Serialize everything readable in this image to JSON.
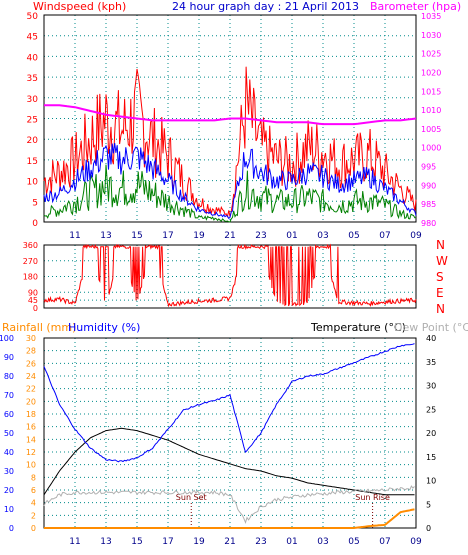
{
  "header": {
    "windspeed_label": "Windspeed (kph)",
    "title": "24 hour graph day : 21 April 2013",
    "barometer_label": "Barometer (hpa)",
    "rainfall_label": "Rainfall (mm)",
    "humidity_label": "Humidity (%)",
    "temperature_label": "Temperature (°C)",
    "dewpoint_label": "Dew Point (°C)"
  },
  "colors": {
    "wind_gust": "#ff0000",
    "wind_avg": "#0000ff",
    "wind_low": "#008000",
    "barometer": "#ff00ff",
    "temperature": "#000000",
    "humidity": "#0000ff",
    "dewpoint": "#b0b0b0",
    "rainfall": "#ff8c00",
    "axis_blue": "#00008b",
    "grid": "#008b8b"
  },
  "x_labels": [
    "11",
    "13",
    "15",
    "17",
    "19",
    "21",
    "23",
    "01",
    "03",
    "05",
    "07",
    "09"
  ],
  "annotations": {
    "sunset": "Sun Set",
    "sunrise": "Sun Rise"
  },
  "chart_data": [
    {
      "type": "line",
      "title": "24 hour graph day : 21 April 2013",
      "ylabel": "Windspeed (kph)",
      "y2label": "Barometer (hpa)",
      "ylim": [
        0,
        50
      ],
      "y2lim": [
        980,
        1035
      ],
      "y_ticks": [
        0,
        5,
        10,
        15,
        20,
        25,
        30,
        35,
        40,
        45,
        50
      ],
      "y2_ticks": [
        980,
        985,
        990,
        995,
        1000,
        1005,
        1010,
        1015,
        1020,
        1025,
        1030,
        1035
      ],
      "x": [
        "09:00",
        "10:00",
        "11:00",
        "12:00",
        "13:00",
        "14:00",
        "15:00",
        "16:00",
        "17:00",
        "18:00",
        "19:00",
        "20:00",
        "21:00",
        "22:00",
        "23:00",
        "00:00",
        "01:00",
        "02:00",
        "03:00",
        "04:00",
        "05:00",
        "06:00",
        "07:00",
        "08:00",
        "09:00"
      ],
      "series": [
        {
          "name": "Barometer (hpa)",
          "axis": "right",
          "values": [
            1011,
            1011,
            1010.5,
            1009.5,
            1008.5,
            1008,
            1007.5,
            1007,
            1007,
            1007,
            1007,
            1007,
            1007.5,
            1007.5,
            1007,
            1006.5,
            1006.5,
            1006.5,
            1006,
            1006,
            1006,
            1006.5,
            1007,
            1007,
            1007.5
          ]
        },
        {
          "name": "Gust",
          "axis": "left",
          "values": [
            10,
            12,
            15,
            20,
            25,
            22,
            26,
            20,
            16,
            10,
            5,
            3,
            2,
            28,
            18,
            15,
            14,
            18,
            17,
            14,
            15,
            16,
            12,
            8,
            4
          ]
        },
        {
          "name": "Average",
          "axis": "left",
          "values": [
            6,
            7,
            10,
            13,
            16,
            15,
            16,
            13,
            10,
            6,
            3,
            2,
            1,
            16,
            12,
            10,
            10,
            12,
            11,
            9,
            10,
            11,
            8,
            5,
            2
          ]
        },
        {
          "name": "Low",
          "axis": "left",
          "values": [
            2,
            3,
            5,
            7,
            9,
            8,
            9,
            7,
            5,
            3,
            1,
            1,
            0,
            8,
            6,
            5,
            5,
            6,
            5,
            4,
            5,
            5,
            4,
            2,
            1
          ]
        }
      ]
    },
    {
      "type": "scatter",
      "ylabel": "Wind direction",
      "y_ticks": [
        0,
        45,
        90,
        180,
        270,
        360
      ],
      "compass_labels": [
        "N",
        "W",
        "S",
        "E",
        "N"
      ],
      "ylim": [
        0,
        360
      ],
      "x": [
        "09:00",
        "10:00",
        "11:00",
        "12:00",
        "13:00",
        "14:00",
        "15:00",
        "16:00",
        "17:00",
        "18:00",
        "19:00",
        "20:00",
        "21:00",
        "22:00",
        "23:00",
        "00:00",
        "01:00",
        "02:00",
        "03:00",
        "04:00",
        "05:00",
        "06:00",
        "07:00",
        "08:00",
        "09:00"
      ],
      "values": [
        40,
        45,
        20,
        340,
        15,
        340,
        20,
        340,
        15,
        25,
        35,
        40,
        50,
        345,
        350,
        20,
        15,
        25,
        340,
        30,
        25,
        20,
        30,
        35,
        40
      ]
    },
    {
      "type": "line",
      "ylabel": "Humidity (%)",
      "y_ticks_humidity": [
        0,
        10,
        20,
        30,
        40,
        50,
        60,
        70,
        80,
        90,
        100
      ],
      "y_ticks_rainfall": [
        0,
        2,
        4,
        6,
        8,
        10,
        12,
        14,
        16,
        18,
        20,
        22,
        24,
        26,
        28,
        30
      ],
      "y2label": "Temperature (°C)",
      "y2_ticks": [
        0,
        5,
        10,
        15,
        20,
        25,
        30,
        35,
        40
      ],
      "x": [
        "09:00",
        "10:00",
        "11:00",
        "12:00",
        "13:00",
        "14:00",
        "15:00",
        "16:00",
        "17:00",
        "18:00",
        "19:00",
        "20:00",
        "21:00",
        "22:00",
        "23:00",
        "00:00",
        "01:00",
        "02:00",
        "03:00",
        "04:00",
        "05:00",
        "06:00",
        "07:00",
        "08:00",
        "09:00"
      ],
      "series": [
        {
          "name": "Temperature (°C)",
          "axis": "right",
          "values": [
            7,
            12,
            16,
            19,
            20.5,
            21,
            20.5,
            19.5,
            18.5,
            17,
            15.5,
            14.5,
            13.5,
            12.5,
            12,
            11,
            10.5,
            9.5,
            9,
            8.5,
            8,
            7.5,
            7,
            7,
            7
          ]
        },
        {
          "name": "Humidity (%)",
          "axis": "left_humidity",
          "values": [
            85,
            65,
            52,
            42,
            36,
            35,
            37,
            42,
            52,
            62,
            65,
            67,
            70,
            40,
            50,
            65,
            77,
            80,
            81,
            84,
            87,
            90,
            93,
            96,
            97
          ]
        },
        {
          "name": "Dew Point (°C)",
          "axis": "right",
          "values": [
            5,
            7,
            7.5,
            7.5,
            7.5,
            7.5,
            7.5,
            7.5,
            7.5,
            7.5,
            7.5,
            7.5,
            7,
            1.5,
            4.5,
            6,
            6.5,
            7,
            7.2,
            7.5,
            7.7,
            7.8,
            8,
            8.3,
            8.5
          ]
        },
        {
          "name": "Rainfall (mm)",
          "axis": "left_rainfall",
          "values": [
            0,
            0,
            0,
            0,
            0,
            0,
            0,
            0,
            0,
            0,
            0,
            0,
            0,
            0,
            0,
            0,
            0,
            0,
            0,
            0,
            0,
            0.3,
            0.5,
            2.5,
            3
          ]
        }
      ]
    }
  ]
}
